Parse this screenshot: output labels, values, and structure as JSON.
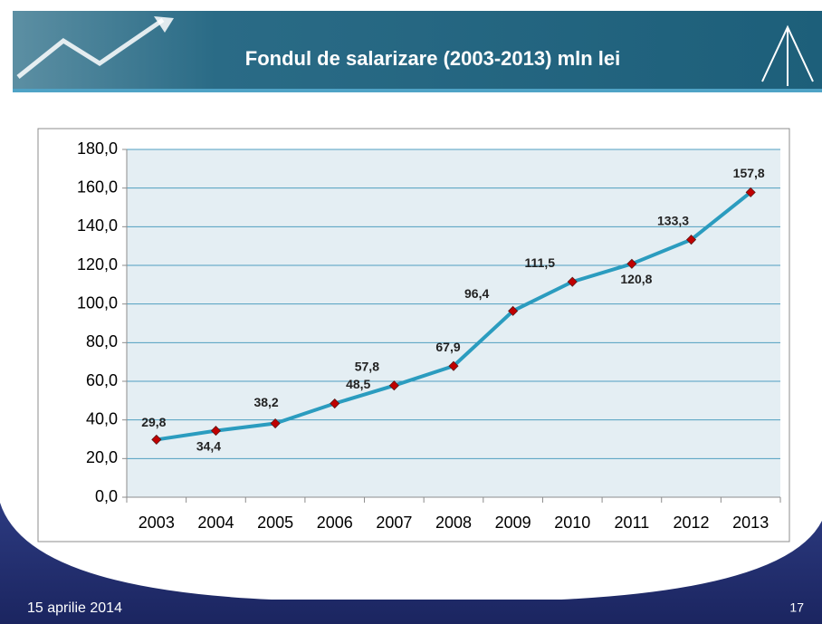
{
  "chart_data": {
    "type": "line",
    "title": "Fondul de salarizare (2003-2013) mln lei",
    "categories": [
      "2003",
      "2004",
      "2005",
      "2006",
      "2007",
      "2008",
      "2009",
      "2010",
      "2011",
      "2012",
      "2013"
    ],
    "series": [
      {
        "color": "#2b9cbf",
        "marker_color": "#c00000",
        "values": [
          29.8,
          34.4,
          38.2,
          48.5,
          57.8,
          67.9,
          96.4,
          111.5,
          120.8,
          133.3,
          157.8
        ],
        "value_labels": [
          "29,8",
          "34,4",
          "38,2",
          "48,5",
          "57,8",
          "67,9",
          "96,4",
          "111,5",
          "120,8",
          "133,3",
          "157,8"
        ]
      }
    ],
    "ylim": [
      0,
      180
    ],
    "yticks": [
      {
        "value": 0,
        "label": "0,0"
      },
      {
        "value": 20,
        "label": "20,0"
      },
      {
        "value": 40,
        "label": "40,0"
      },
      {
        "value": 60,
        "label": "60,0"
      },
      {
        "value": 80,
        "label": "80,0"
      },
      {
        "value": 100,
        "label": "100,0"
      },
      {
        "value": 120,
        "label": "120,0"
      },
      {
        "value": 140,
        "label": "140,0"
      },
      {
        "value": 160,
        "label": "160,0"
      },
      {
        "value": 180,
        "label": "180,0"
      }
    ],
    "grid": true
  },
  "footer": {
    "date": "15 aprilie 2014",
    "page": "17"
  }
}
